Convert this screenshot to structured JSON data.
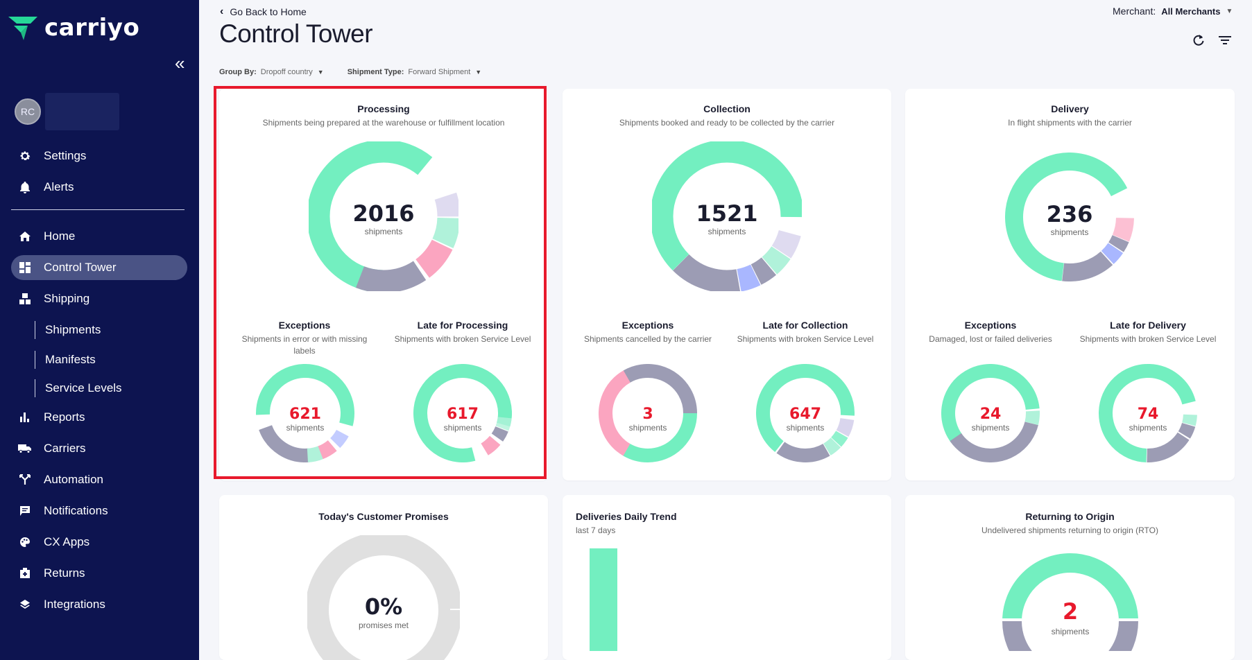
{
  "brand": {
    "name": "carriyo"
  },
  "sidebar": {
    "avatar_initials": "RC",
    "top_items": [
      {
        "label": "Settings",
        "icon": "gear-icon"
      },
      {
        "label": "Alerts",
        "icon": "bell-icon"
      }
    ],
    "items": [
      {
        "label": "Home",
        "icon": "home-icon"
      },
      {
        "label": "Control Tower",
        "icon": "dashboard-icon",
        "active": true
      },
      {
        "label": "Shipping",
        "icon": "boxes-icon"
      },
      {
        "label": "Reports",
        "icon": "bar-chart-icon"
      },
      {
        "label": "Carriers",
        "icon": "truck-icon"
      },
      {
        "label": "Automation",
        "icon": "fork-icon"
      },
      {
        "label": "Notifications",
        "icon": "message-icon"
      },
      {
        "label": "CX Apps",
        "icon": "palette-icon"
      },
      {
        "label": "Returns",
        "icon": "return-box-icon"
      },
      {
        "label": "Integrations",
        "icon": "layers-icon"
      }
    ],
    "sub_items": [
      "Shipments",
      "Manifests",
      "Service Levels"
    ]
  },
  "header": {
    "back_label": "Go Back to Home",
    "title": "Control Tower",
    "merchant_label": "Merchant:",
    "merchant_value": "All Merchants"
  },
  "controls": {
    "group_by_label": "Group By:",
    "group_by_value": "Dropoff country",
    "shipment_type_label": "Shipment Type:",
    "shipment_type_value": "Forward Shipment"
  },
  "colors": {
    "green": "#73efc0",
    "grey": "#9c9cb4",
    "pink": "#fba5c0",
    "lavender": "#a9b7ff",
    "red": "#e8192c"
  },
  "cards": {
    "processing": {
      "title": "Processing",
      "subtitle": "Shipments being prepared at the warehouse or fulfillment location",
      "value": "2016",
      "unit": "shipments",
      "exceptions": {
        "title": "Exceptions",
        "subtitle": "Shipments in error or with missing labels",
        "value": "621",
        "unit": "shipments"
      },
      "late": {
        "title": "Late for Processing",
        "subtitle": "Shipments with broken Service Level",
        "value": "617",
        "unit": "shipments"
      }
    },
    "collection": {
      "title": "Collection",
      "subtitle": "Shipments booked and ready to be collected by the carrier",
      "value": "1521",
      "unit": "shipments",
      "exceptions": {
        "title": "Exceptions",
        "subtitle": "Shipments cancelled by the carrier",
        "value": "3",
        "unit": "shipments"
      },
      "late": {
        "title": "Late for Collection",
        "subtitle": "Shipments with broken Service Level",
        "value": "647",
        "unit": "shipments"
      }
    },
    "delivery": {
      "title": "Delivery",
      "subtitle": "In flight shipments with the carrier",
      "value": "236",
      "unit": "shipments",
      "exceptions": {
        "title": "Exceptions",
        "subtitle": "Damaged, lost or failed deliveries",
        "value": "24",
        "unit": "shipments"
      },
      "late": {
        "title": "Late for Delivery",
        "subtitle": "Shipments with broken Service Level",
        "value": "74",
        "unit": "shipments"
      }
    },
    "promises": {
      "title": "Today's Customer Promises",
      "value": "0%",
      "unit": "promises met"
    },
    "trend": {
      "title": "Deliveries Daily Trend",
      "subtitle": "last 7 days"
    },
    "rto": {
      "title": "Returning to Origin",
      "subtitle": "Undelivered shipments returning to origin (RTO)",
      "value": "2",
      "unit": "shipments"
    }
  }
}
